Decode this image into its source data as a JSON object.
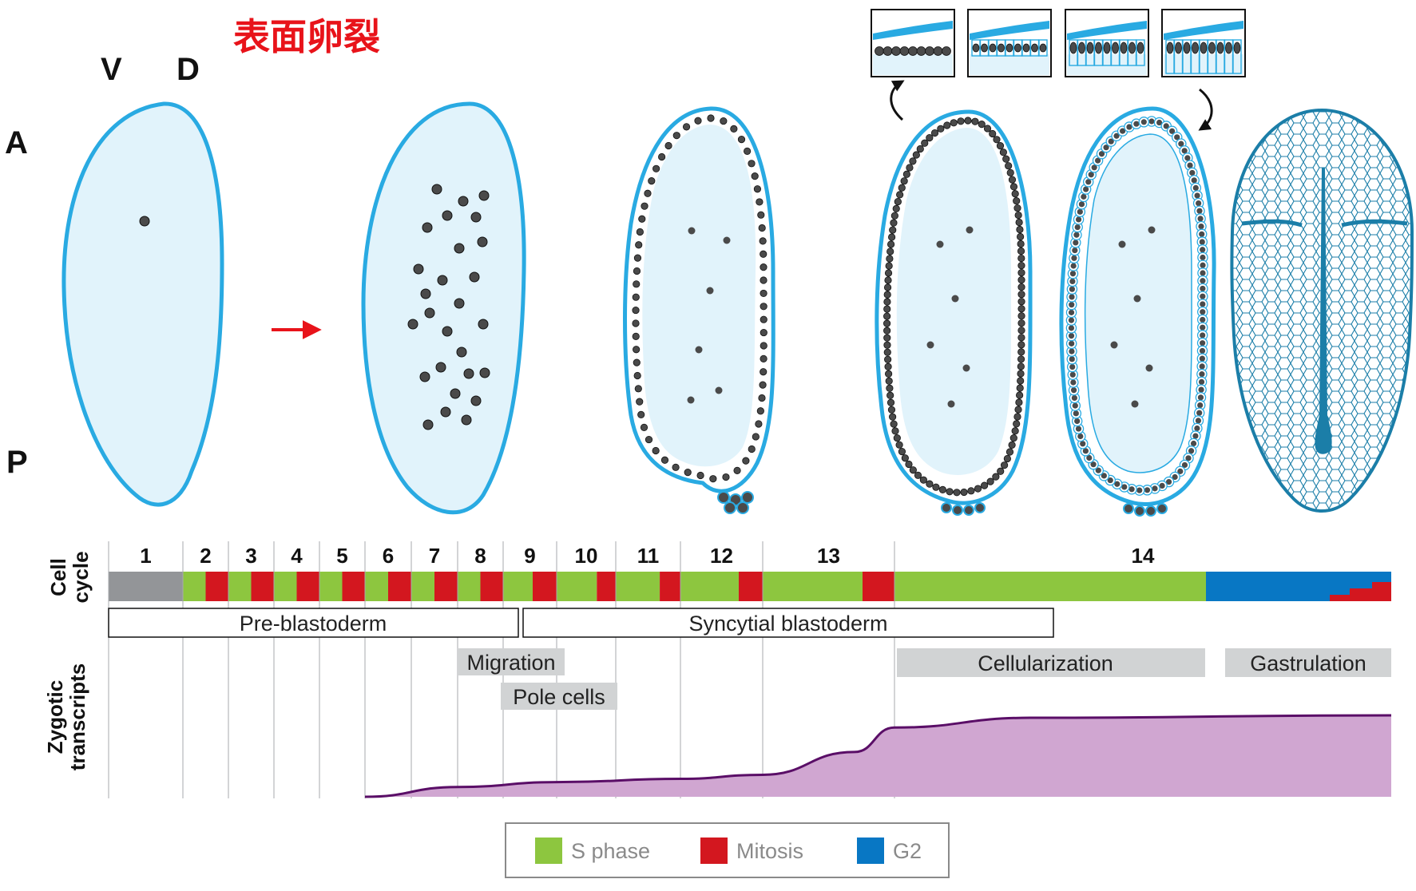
{
  "title": "表面卵裂",
  "axes": {
    "ventral": "V",
    "dorsal": "D",
    "anterior": "A",
    "posterior": "P"
  },
  "row_labels": {
    "cell_cycle": [
      "Cell",
      "cycle"
    ],
    "zygotic_transcripts": [
      "Zygotic",
      "transcripts"
    ]
  },
  "cell_cycles": [
    "1",
    "2",
    "3",
    "4",
    "5",
    "6",
    "7",
    "8",
    "9",
    "10",
    "11",
    "12",
    "13",
    "14"
  ],
  "stages": {
    "pre_blastoderm": "Pre-blastoderm",
    "syncytial_blastoderm": "Syncytial blastoderm",
    "migration": "Migration",
    "pole_cells": "Pole cells",
    "cellularization": "Cellularization",
    "gastrulation": "Gastrulation"
  },
  "legend": {
    "s_phase": "S phase",
    "mitosis": "Mitosis",
    "g2": "G2"
  },
  "colors": {
    "egg_outline": "#29aae2",
    "egg_fill": "#e1f3fb",
    "nucleus": "#4a4a4a",
    "arrow": "#e8131a",
    "title": "#e8131a",
    "s_phase": "#8dc63f",
    "mitosis": "#d3171f",
    "g2": "#0877c4",
    "cycle1": "#939598",
    "phase_box": "#d1d3d4",
    "transcripts_fill": "#d0a6d1",
    "transcripts_line": "#5a0e67",
    "gastrula": "#1b7ea8"
  },
  "zygotic_transcripts_curve": {
    "note_units": "relative level along cell cycles 6–14",
    "levels": [
      {
        "cycle": 6,
        "level": 0.0
      },
      {
        "cycle": 8,
        "level": 0.12
      },
      {
        "cycle": 10,
        "level": 0.18
      },
      {
        "cycle": 12,
        "level": 0.22
      },
      {
        "cycle": 13,
        "level": 0.27
      },
      {
        "cycle": 13.5,
        "level": 0.55
      },
      {
        "cycle": 14,
        "level": 0.85
      },
      {
        "cycle": 14.5,
        "level": 0.97
      },
      {
        "cycle": 15,
        "level": 1.0
      }
    ]
  }
}
